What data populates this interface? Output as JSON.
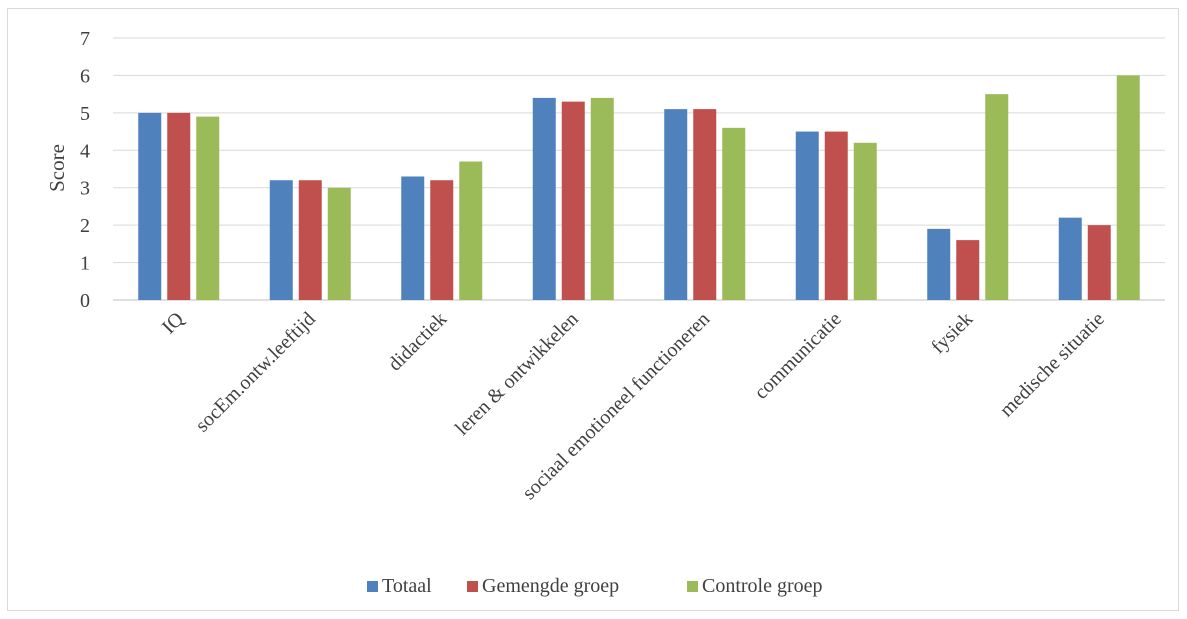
{
  "chart_data": {
    "type": "bar",
    "ylabel": "Score",
    "ylim": [
      0,
      7
    ],
    "yticks": [
      "0",
      "1",
      "2",
      "3",
      "4",
      "5",
      "6",
      "7"
    ],
    "grid": true,
    "legend_position": "bottom",
    "categories": [
      "IQ",
      "socEm.ontw.leeftijd",
      "didactiek",
      "leren & ontwikkelen",
      "sociaal emotioneel functioneren",
      "communicatie",
      "fysiek",
      "medische situatie"
    ],
    "series": [
      {
        "name": "Totaal",
        "color": "#4f81bd",
        "values": [
          5.0,
          3.2,
          3.3,
          5.4,
          5.1,
          4.5,
          1.9,
          2.2
        ]
      },
      {
        "name": "Gemengde groep",
        "color": "#c0504d",
        "values": [
          5.0,
          3.2,
          3.2,
          5.3,
          5.1,
          4.5,
          1.6,
          2.0
        ]
      },
      {
        "name": "Controle groep",
        "color": "#9bbb59",
        "values": [
          4.9,
          3.0,
          3.7,
          5.4,
          4.6,
          4.2,
          5.5,
          6.0
        ]
      }
    ]
  }
}
